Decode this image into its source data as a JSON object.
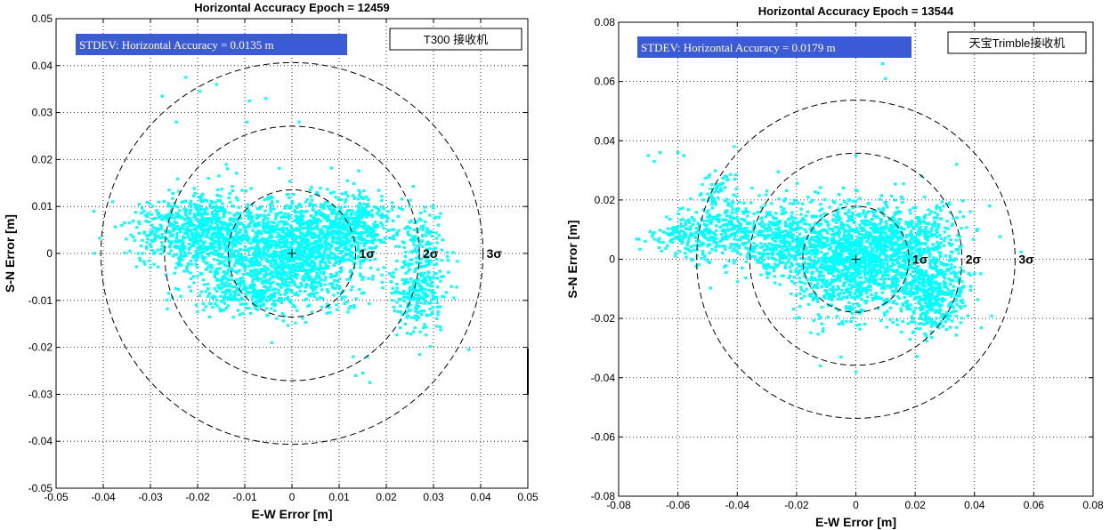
{
  "chart_data": [
    {
      "type": "scatter",
      "title": "Horizontal Accuracy   Epoch = 12459",
      "xlabel": "E-W Error [m]",
      "ylabel": "S-N Error [m]",
      "xlim": [
        -0.05,
        0.05
      ],
      "ylim": [
        -0.05,
        0.05
      ],
      "xticks": [
        "-0.05",
        "-0.04",
        "-0.03",
        "-0.02",
        "-0.01",
        "0",
        "0.01",
        "0.02",
        "0.03",
        "0.04",
        "0.05"
      ],
      "yticks": [
        "0.05",
        "0.04",
        "0.03",
        "0.02",
        "0.01",
        "0",
        "-0.01",
        "-0.02",
        "-0.03",
        "-0.04",
        "-0.05"
      ],
      "grid": true,
      "stdev_text": "STDEV: Horizontal Accuracy = 0.0135 m",
      "legend_text": "T300 接收机",
      "marker_color": "#00FFFF",
      "sigma_radii": [
        0.0135,
        0.027,
        0.0405
      ],
      "sigma_labels": [
        "1σ",
        "2σ",
        "3σ"
      ],
      "point_clusters": [
        {
          "cx": 0.0,
          "cy": 0.0,
          "sx": 0.0085,
          "sy": 0.0055,
          "n": 1400
        },
        {
          "cx": -0.02,
          "cy": 0.005,
          "sx": 0.0065,
          "sy": 0.004,
          "n": 700
        },
        {
          "cx": 0.012,
          "cy": 0.006,
          "sx": 0.006,
          "sy": 0.0035,
          "n": 450
        },
        {
          "cx": 0.027,
          "cy": -0.008,
          "sx": 0.003,
          "sy": 0.0045,
          "n": 260
        },
        {
          "cx": 0.028,
          "cy": 0.003,
          "sx": 0.002,
          "sy": 0.0035,
          "n": 90
        },
        {
          "cx": -0.01,
          "cy": -0.008,
          "sx": 0.006,
          "sy": 0.0028,
          "n": 250
        }
      ],
      "outliers": [
        [
          -0.0275,
          0.0335
        ],
        [
          -0.0225,
          0.0375
        ],
        [
          -0.0245,
          0.028
        ],
        [
          -0.0195,
          0.0345
        ],
        [
          -0.016,
          0.036
        ],
        [
          -0.009,
          0.0325
        ],
        [
          -0.0095,
          0.028
        ],
        [
          -0.0055,
          0.033
        ],
        [
          -0.0155,
          0.0165
        ],
        [
          0.0015,
          0.028
        ],
        [
          -0.042,
          0.009
        ],
        [
          -0.038,
          0.011
        ],
        [
          -0.0345,
          0.0065
        ],
        [
          -0.03,
          -0.003
        ],
        [
          0.013,
          -0.022
        ],
        [
          0.015,
          -0.0255
        ],
        [
          0.0165,
          -0.0275
        ],
        [
          0.0135,
          -0.026
        ],
        [
          0.016,
          -0.022
        ],
        [
          0.0375,
          -0.0205
        ],
        [
          0.0315,
          0.0085
        ],
        [
          0.0115,
          0.013
        ]
      ]
    },
    {
      "type": "scatter",
      "title": "Horizontal Accuracy   Epoch = 13544",
      "xlabel": "E-W Error [m]",
      "ylabel": "S-N Error [m]",
      "xlim": [
        -0.08,
        0.08
      ],
      "ylim": [
        -0.08,
        0.08
      ],
      "xticks": [
        "-0.08",
        "-0.06",
        "-0.04",
        "-0.02",
        "0",
        "0.02",
        "0.04",
        "0.06",
        "0.08"
      ],
      "yticks": [
        "0.08",
        "0.06",
        "0.04",
        "0.02",
        "0",
        "-0.02",
        "-0.04",
        "-0.06",
        "-0.08"
      ],
      "grid": true,
      "stdev_text": "STDEV: Horizontal Accuracy = 0.0179 m",
      "legend_text": "天宝Trimble接收机",
      "marker_color": "#00FFFF",
      "sigma_radii": [
        0.0179,
        0.0358,
        0.0537
      ],
      "sigma_labels": [
        "1σ",
        "2σ",
        "3σ"
      ],
      "point_clusters": [
        {
          "cx": 0.0,
          "cy": 0.0,
          "sx": 0.011,
          "sy": 0.009,
          "n": 1400
        },
        {
          "cx": 0.025,
          "cy": -0.012,
          "sx": 0.006,
          "sy": 0.006,
          "n": 500
        },
        {
          "cx": -0.025,
          "cy": 0.006,
          "sx": 0.009,
          "sy": 0.006,
          "n": 450
        },
        {
          "cx": 0.02,
          "cy": 0.008,
          "sx": 0.01,
          "sy": 0.005,
          "n": 350
        },
        {
          "cx": -0.055,
          "cy": 0.008,
          "sx": 0.007,
          "sy": 0.004,
          "n": 220
        },
        {
          "cx": -0.043,
          "cy": 0.012,
          "sx": 0.004,
          "sy": 0.005,
          "n": 120
        },
        {
          "cx": -0.047,
          "cy": 0.024,
          "sx": 0.003,
          "sy": 0.004,
          "n": 50
        }
      ],
      "outliers": [
        [
          -0.07,
          0.035
        ],
        [
          -0.068,
          0.033
        ],
        [
          -0.066,
          0.036
        ],
        [
          -0.06,
          0.036
        ],
        [
          -0.058,
          0.035
        ],
        [
          -0.041,
          0.038
        ],
        [
          0.009,
          0.066
        ],
        [
          0.01,
          0.061
        ],
        [
          0.0,
          0.035
        ],
        [
          0.034,
          0.032
        ],
        [
          0.0,
          -0.038
        ],
        [
          -0.012,
          -0.036
        ],
        [
          -0.005,
          -0.033
        ],
        [
          -0.068,
          0.009
        ],
        [
          -0.071,
          0.006
        ],
        [
          -0.035,
          0.024
        ],
        [
          -0.03,
          0.023
        ]
      ]
    }
  ]
}
